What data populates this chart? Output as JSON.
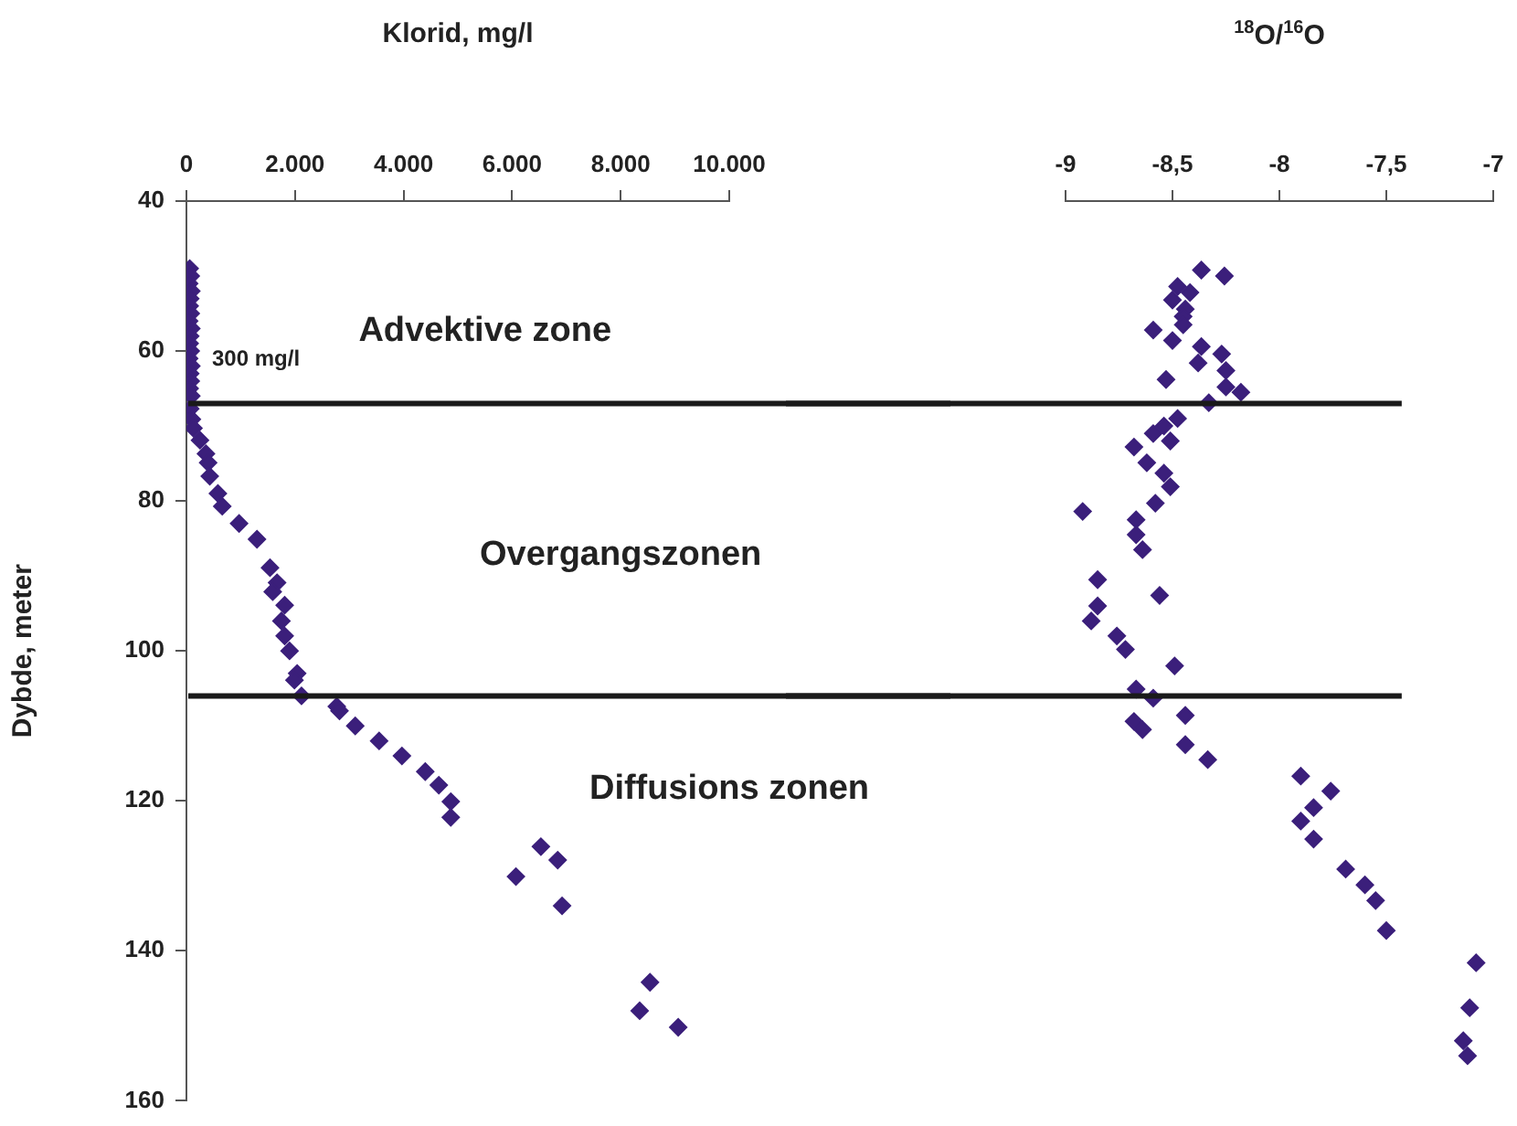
{
  "chart_data": [
    {
      "type": "scatter",
      "xlabel": "Klorid, mg/l",
      "ylabel": "Dybde, meter",
      "xlim": [
        0,
        10000
      ],
      "xticks": [
        0,
        {
          "value": 2000,
          "label": "2.000"
        },
        {
          "value": 4000,
          "label": "4.000"
        },
        {
          "value": 6000,
          "label": "6.000"
        },
        {
          "value": 8000,
          "label": "8.000"
        },
        {
          "value": 10000,
          "label": "10.000"
        }
      ],
      "ylim": [
        160,
        40
      ],
      "yticks": [
        40,
        60,
        80,
        100,
        120,
        140,
        160
      ],
      "marker": "diamond",
      "series": [
        {
          "color": "#3b1f7b",
          "x": [
            60,
            80,
            50,
            90,
            70,
            60,
            80,
            50,
            90,
            70,
            60,
            80,
            50,
            90,
            70,
            80,
            60,
            90,
            70,
            100,
            130,
            250,
            360,
            400,
            430,
            580,
            660,
            970,
            1300,
            1540,
            1670,
            1590,
            1810,
            1750,
            1810,
            1900,
            2040,
            1990,
            2120,
            2770,
            2820,
            3110,
            3550,
            3970,
            4400,
            4650,
            4870,
            4870,
            6530,
            6840,
            6070,
            6920,
            8540,
            8350,
            9060
          ],
          "values": [
            49,
            50,
            51,
            52,
            53,
            54,
            55,
            56,
            57,
            58,
            59,
            60,
            61,
            62,
            63,
            64,
            65,
            66,
            67.7,
            69.1,
            70.3,
            71.9,
            73.7,
            74.9,
            76.7,
            79,
            80.7,
            83,
            85.1,
            88.9,
            90.9,
            92.1,
            93.9,
            96,
            98,
            100,
            103,
            103.9,
            106,
            107.4,
            108,
            110,
            112,
            114,
            116.1,
            117.9,
            120.1,
            122.2,
            126.1,
            127.9,
            130.1,
            134,
            144.2,
            148,
            150.2
          ]
        }
      ],
      "ref_lines": [
        {
          "axis": "y",
          "value": 67,
          "label": "300 mg/l",
          "color": "#1a1a1a"
        },
        {
          "axis": "y",
          "value": 106,
          "color": "#1a1a1a"
        }
      ],
      "annotations": [
        "Advektive zone",
        "Overgangszonen",
        "Diffusions zonen"
      ]
    },
    {
      "type": "scatter",
      "xlabel": "$^{18}$O/$^{16}$O",
      "xlim": [
        -9,
        -7
      ],
      "xticks": [
        -9,
        {
          "value": -8.5,
          "label": "-8,5"
        },
        -8,
        {
          "value": -7.5,
          "label": "-7,5"
        },
        -7
      ],
      "ylim": [
        160,
        40
      ],
      "tick_labels": "x",
      "marker": "diamond",
      "series": [
        {
          "color": "#3b1f7b",
          "x": [
            -8.365,
            -8.257,
            -8.476,
            -8.418,
            -8.5,
            -8.44,
            -8.45,
            -8.45,
            -8.59,
            -8.5,
            -8.365,
            -8.27,
            -8.38,
            -8.25,
            -8.53,
            -8.25,
            -8.18,
            -8.33,
            -8.476,
            -8.54,
            -8.59,
            -8.51,
            -8.68,
            -8.62,
            -8.54,
            -8.51,
            -8.58,
            -8.92,
            -8.67,
            -8.67,
            -8.64,
            -8.85,
            -8.56,
            -8.85,
            -8.88,
            -8.76,
            -8.72,
            -8.49,
            -8.67,
            -8.59,
            -8.44,
            -8.68,
            -8.64,
            -8.44,
            -8.335,
            -7.9,
            -7.76,
            -7.84,
            -7.9,
            -7.84,
            -7.69,
            -7.6,
            -7.55,
            -7.5,
            -7.08,
            -7.11,
            -7.14,
            -7.12
          ],
          "values": [
            49.2,
            50,
            51.4,
            52.2,
            53.2,
            54.4,
            55.4,
            56.5,
            57.2,
            58.6,
            59.4,
            60.4,
            61.6,
            62.6,
            63.8,
            64.8,
            65.5,
            66.9,
            69,
            70,
            71,
            72,
            72.8,
            74.9,
            76.3,
            78.1,
            80.3,
            81.4,
            82.5,
            84.5,
            86.5,
            90.5,
            92.6,
            94,
            96,
            98,
            99.8,
            102,
            105.1,
            106.3,
            108.6,
            109.4,
            110.5,
            112.5,
            114.5,
            116.7,
            118.7,
            120.9,
            122.7,
            125.1,
            129.1,
            131.2,
            133.3,
            137.3,
            141.6,
            147.6,
            152,
            154
          ]
        }
      ],
      "ref_lines": [
        {
          "axis": "y",
          "value": 67,
          "color": "#1a1a1a"
        },
        {
          "axis": "y",
          "value": 106,
          "color": "#1a1a1a"
        }
      ]
    }
  ]
}
